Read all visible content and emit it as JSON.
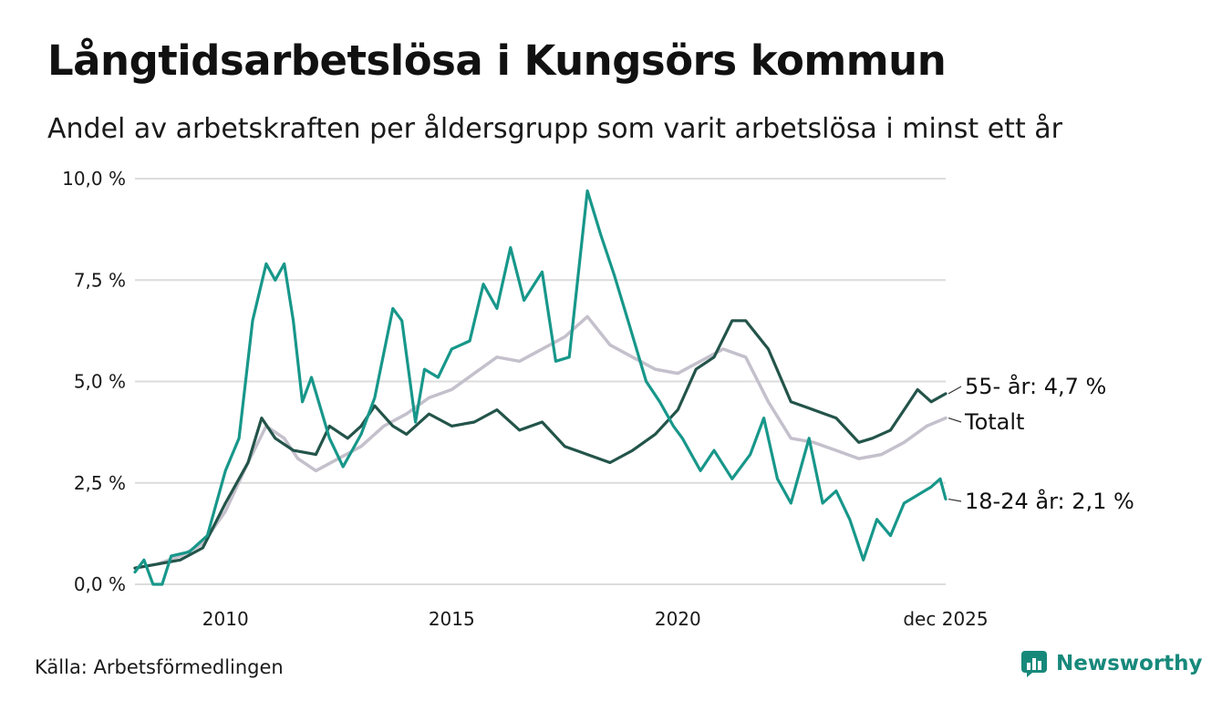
{
  "header": {
    "title": "Långtidsarbetslösa i Kungsörs kommun",
    "subtitle": "Andel av arbetskraften per åldersgrupp som varit arbetslösa i minst ett år"
  },
  "footer": {
    "source": "Källa: Arbetsförmedlingen",
    "brand": "Newsworthy"
  },
  "colors": {
    "youth": "#17978a",
    "senior": "#23544a",
    "total": "#c4c0cc",
    "grid": "#dcdcdc"
  },
  "chart_data": {
    "type": "line",
    "title": "Långtidsarbetslösa i Kungsörs kommun",
    "subtitle": "Andel av arbetskraften per åldersgrupp som varit arbetslösa i minst ett år",
    "ylim": [
      0,
      10
    ],
    "xlim": [
      2008.0,
      2025.92
    ],
    "y_ticks": [
      {
        "value": 0,
        "label": "0,0 %"
      },
      {
        "value": 2.5,
        "label": "2,5 %"
      },
      {
        "value": 5,
        "label": "5,0 %"
      },
      {
        "value": 7.5,
        "label": "7,5 %"
      },
      {
        "value": 10,
        "label": "10,0 %"
      }
    ],
    "x_ticks": [
      {
        "value": 2010,
        "label": "2010"
      },
      {
        "value": 2015,
        "label": "2015"
      },
      {
        "value": 2020,
        "label": "2020"
      },
      {
        "value": 2025.92,
        "label": "dec 2025"
      }
    ],
    "grid": true,
    "series": [
      {
        "name": "Totalt",
        "key": "total",
        "end_label": "Totalt",
        "points": [
          [
            2008.0,
            0.4
          ],
          [
            2008.5,
            0.5
          ],
          [
            2009.0,
            0.7
          ],
          [
            2009.5,
            1.0
          ],
          [
            2010.0,
            1.8
          ],
          [
            2010.5,
            3.0
          ],
          [
            2010.9,
            3.9
          ],
          [
            2011.3,
            3.6
          ],
          [
            2011.6,
            3.1
          ],
          [
            2012.0,
            2.8
          ],
          [
            2012.5,
            3.1
          ],
          [
            2013.0,
            3.4
          ],
          [
            2013.5,
            3.9
          ],
          [
            2014.0,
            4.2
          ],
          [
            2014.5,
            4.6
          ],
          [
            2015.0,
            4.8
          ],
          [
            2015.5,
            5.2
          ],
          [
            2016.0,
            5.6
          ],
          [
            2016.5,
            5.5
          ],
          [
            2017.0,
            5.8
          ],
          [
            2017.5,
            6.1
          ],
          [
            2018.0,
            6.6
          ],
          [
            2018.5,
            5.9
          ],
          [
            2019.0,
            5.6
          ],
          [
            2019.5,
            5.3
          ],
          [
            2020.0,
            5.2
          ],
          [
            2020.5,
            5.5
          ],
          [
            2021.0,
            5.8
          ],
          [
            2021.5,
            5.6
          ],
          [
            2022.0,
            4.5
          ],
          [
            2022.5,
            3.6
          ],
          [
            2023.0,
            3.5
          ],
          [
            2023.5,
            3.3
          ],
          [
            2024.0,
            3.1
          ],
          [
            2024.5,
            3.2
          ],
          [
            2025.0,
            3.5
          ],
          [
            2025.5,
            3.9
          ],
          [
            2025.92,
            4.1
          ]
        ]
      },
      {
        "name": "55- år",
        "key": "senior",
        "end_label": "55- år: 4,7 %",
        "last_value": 4.7,
        "points": [
          [
            2008.0,
            0.4
          ],
          [
            2008.5,
            0.5
          ],
          [
            2009.0,
            0.6
          ],
          [
            2009.5,
            0.9
          ],
          [
            2010.0,
            2.0
          ],
          [
            2010.5,
            3.0
          ],
          [
            2010.8,
            4.1
          ],
          [
            2011.1,
            3.6
          ],
          [
            2011.5,
            3.3
          ],
          [
            2012.0,
            3.2
          ],
          [
            2012.3,
            3.9
          ],
          [
            2012.7,
            3.6
          ],
          [
            2013.0,
            3.9
          ],
          [
            2013.3,
            4.4
          ],
          [
            2013.7,
            3.9
          ],
          [
            2014.0,
            3.7
          ],
          [
            2014.5,
            4.2
          ],
          [
            2015.0,
            3.9
          ],
          [
            2015.5,
            4.0
          ],
          [
            2016.0,
            4.3
          ],
          [
            2016.5,
            3.8
          ],
          [
            2017.0,
            4.0
          ],
          [
            2017.5,
            3.4
          ],
          [
            2018.0,
            3.2
          ],
          [
            2018.5,
            3.0
          ],
          [
            2019.0,
            3.3
          ],
          [
            2019.5,
            3.7
          ],
          [
            2020.0,
            4.3
          ],
          [
            2020.4,
            5.3
          ],
          [
            2020.8,
            5.6
          ],
          [
            2021.2,
            6.5
          ],
          [
            2021.5,
            6.5
          ],
          [
            2022.0,
            5.8
          ],
          [
            2022.5,
            4.5
          ],
          [
            2023.0,
            4.3
          ],
          [
            2023.5,
            4.1
          ],
          [
            2024.0,
            3.5
          ],
          [
            2024.3,
            3.6
          ],
          [
            2024.7,
            3.8
          ],
          [
            2025.0,
            4.3
          ],
          [
            2025.3,
            4.8
          ],
          [
            2025.6,
            4.5
          ],
          [
            2025.92,
            4.7
          ]
        ]
      },
      {
        "name": "18-24 år",
        "key": "youth",
        "end_label": "18-24 år: 2,1 %",
        "last_value": 2.1,
        "points": [
          [
            2008.0,
            0.3
          ],
          [
            2008.2,
            0.6
          ],
          [
            2008.4,
            0.0
          ],
          [
            2008.6,
            0.0
          ],
          [
            2008.8,
            0.7
          ],
          [
            2009.2,
            0.8
          ],
          [
            2009.6,
            1.2
          ],
          [
            2010.0,
            2.8
          ],
          [
            2010.3,
            3.6
          ],
          [
            2010.6,
            6.5
          ],
          [
            2010.9,
            7.9
          ],
          [
            2011.1,
            7.5
          ],
          [
            2011.3,
            7.9
          ],
          [
            2011.5,
            6.5
          ],
          [
            2011.7,
            4.5
          ],
          [
            2011.9,
            5.1
          ],
          [
            2012.3,
            3.6
          ],
          [
            2012.6,
            2.9
          ],
          [
            2013.0,
            3.7
          ],
          [
            2013.3,
            4.6
          ],
          [
            2013.7,
            6.8
          ],
          [
            2013.9,
            6.5
          ],
          [
            2014.2,
            4.0
          ],
          [
            2014.4,
            5.3
          ],
          [
            2014.7,
            5.1
          ],
          [
            2015.0,
            5.8
          ],
          [
            2015.4,
            6.0
          ],
          [
            2015.7,
            7.4
          ],
          [
            2016.0,
            6.8
          ],
          [
            2016.3,
            8.3
          ],
          [
            2016.6,
            7.0
          ],
          [
            2017.0,
            7.7
          ],
          [
            2017.3,
            5.5
          ],
          [
            2017.6,
            5.6
          ],
          [
            2018.0,
            9.7
          ],
          [
            2018.3,
            8.6
          ],
          [
            2018.6,
            7.6
          ],
          [
            2018.9,
            6.5
          ],
          [
            2019.3,
            5.0
          ],
          [
            2019.6,
            4.5
          ],
          [
            2019.9,
            3.9
          ],
          [
            2020.1,
            3.6
          ],
          [
            2020.5,
            2.8
          ],
          [
            2020.8,
            3.3
          ],
          [
            2021.2,
            2.6
          ],
          [
            2021.6,
            3.2
          ],
          [
            2021.9,
            4.1
          ],
          [
            2022.2,
            2.6
          ],
          [
            2022.5,
            2.0
          ],
          [
            2022.9,
            3.6
          ],
          [
            2023.2,
            2.0
          ],
          [
            2023.5,
            2.3
          ],
          [
            2023.8,
            1.6
          ],
          [
            2024.1,
            0.6
          ],
          [
            2024.4,
            1.6
          ],
          [
            2024.7,
            1.2
          ],
          [
            2025.0,
            2.0
          ],
          [
            2025.3,
            2.2
          ],
          [
            2025.6,
            2.4
          ],
          [
            2025.8,
            2.6
          ],
          [
            2025.92,
            2.1
          ]
        ]
      }
    ]
  }
}
